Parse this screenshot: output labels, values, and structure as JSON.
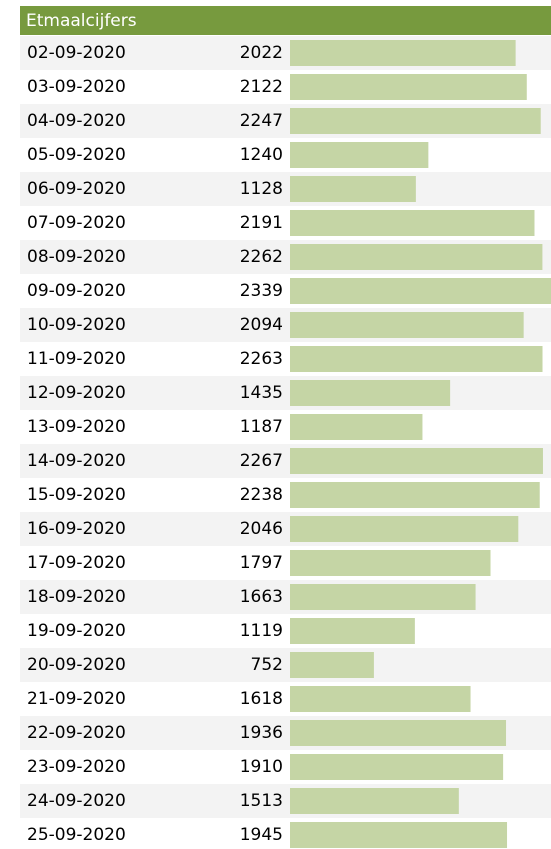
{
  "chart_data": {
    "type": "bar",
    "orientation": "horizontal",
    "title": "Etmaalcijfers",
    "categories": [
      "02-09-2020",
      "03-09-2020",
      "04-09-2020",
      "05-09-2020",
      "06-09-2020",
      "07-09-2020",
      "08-09-2020",
      "09-09-2020",
      "10-09-2020",
      "11-09-2020",
      "12-09-2020",
      "13-09-2020",
      "14-09-2020",
      "15-09-2020",
      "16-09-2020",
      "17-09-2020",
      "18-09-2020",
      "19-09-2020",
      "20-09-2020",
      "21-09-2020",
      "22-09-2020",
      "23-09-2020",
      "24-09-2020",
      "25-09-2020"
    ],
    "values": [
      2022,
      2122,
      2247,
      1240,
      1128,
      2191,
      2262,
      2339,
      2094,
      2263,
      1435,
      1187,
      2267,
      2238,
      2046,
      1797,
      1663,
      1119,
      752,
      1618,
      1936,
      1910,
      1513,
      1945
    ],
    "color": "#c5d5a5",
    "header_color": "#779a3e"
  }
}
